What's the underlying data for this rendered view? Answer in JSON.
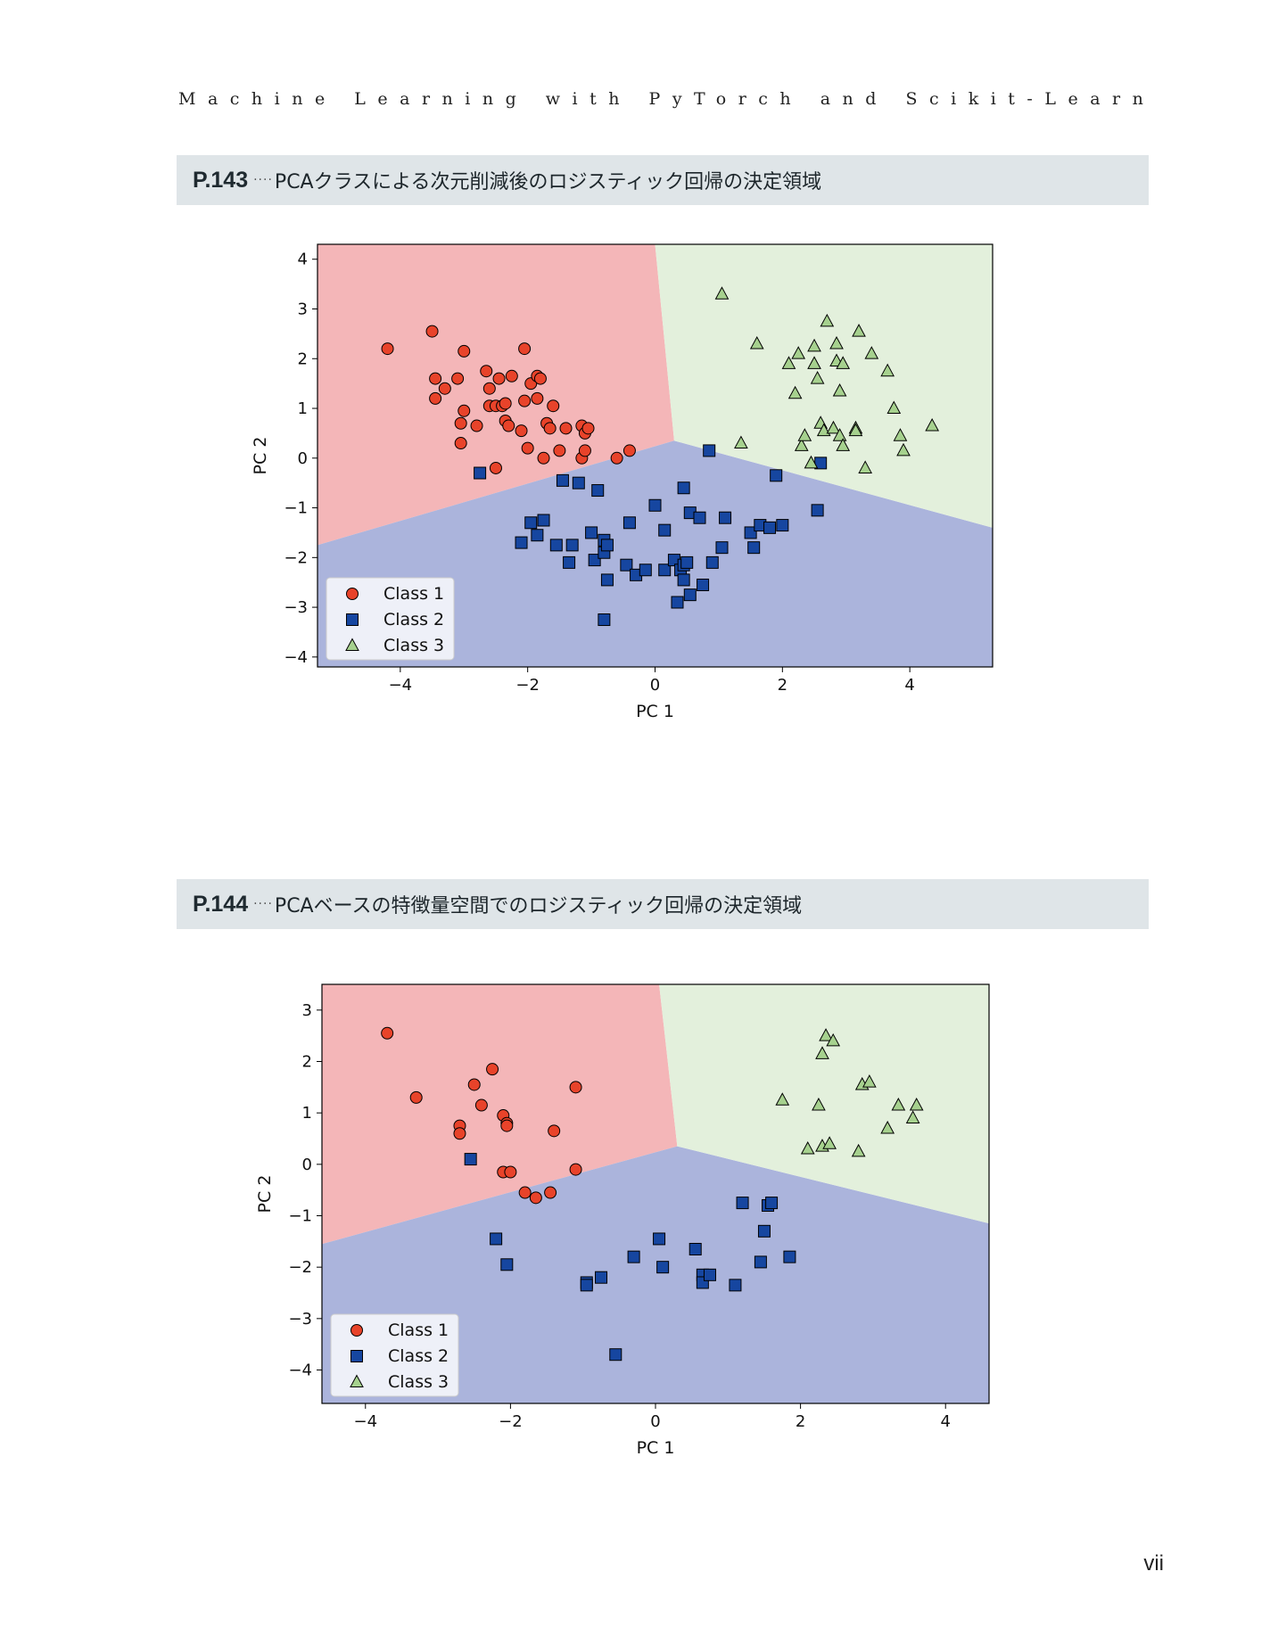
{
  "running_header": "Machine Learning with PyTorch and Scikit-Learn",
  "sections": [
    {
      "page_ref": "P.143",
      "dots": "····",
      "caption": "PCAクラスによる次元削減後のロジスティック回帰の決定領域"
    },
    {
      "page_ref": "P.144",
      "dots": "····",
      "caption": "PCAベースの特徴量空間でのロジスティック回帰の決定領域"
    }
  ],
  "page_number": "vii",
  "colors": {
    "class1_region": "#f4b6b8",
    "class2_region": "#abb4dc",
    "class3_region": "#e3f0dc",
    "class1_marker": "#e8432a",
    "class2_marker": "#1646a0",
    "class3_marker": "#a6d18e",
    "section_bar": "#dfe5e8"
  },
  "chart_data": [
    {
      "type": "scatter",
      "title": "",
      "xlabel": "PC 1",
      "ylabel": "PC 2",
      "xlim": [
        -5.3,
        5.3
      ],
      "ylim": [
        -4.2,
        4.3
      ],
      "xticks": [
        -4,
        -2,
        0,
        2,
        4
      ],
      "yticks": [
        -4,
        -3,
        -2,
        -1,
        0,
        1,
        2,
        3,
        4
      ],
      "xtick_labels": [
        "−4",
        "−2",
        "0",
        "2",
        "4"
      ],
      "ytick_labels": [
        "−4",
        "−3",
        "−2",
        "−1",
        "0",
        "1",
        "2",
        "3",
        "4"
      ],
      "legend_position": "lower-left",
      "decision_regions": {
        "junction": [
          0.3,
          0.35
        ],
        "boundaries_to": {
          "top": [
            0.0,
            4.3
          ],
          "left": [
            -5.3,
            -1.75
          ],
          "right": [
            5.3,
            -1.4
          ]
        }
      },
      "series": [
        {
          "name": "Class 1",
          "marker": "circle",
          "points": [
            [
              -4.2,
              2.2
            ],
            [
              -3.5,
              2.55
            ],
            [
              -3.45,
              1.6
            ],
            [
              -3.45,
              1.2
            ],
            [
              -3.3,
              1.4
            ],
            [
              -3.1,
              1.6
            ],
            [
              -3.05,
              0.7
            ],
            [
              -3.05,
              0.3
            ],
            [
              -3.0,
              0.95
            ],
            [
              -3.0,
              2.15
            ],
            [
              -2.8,
              0.65
            ],
            [
              -2.65,
              1.75
            ],
            [
              -2.6,
              1.4
            ],
            [
              -2.6,
              1.05
            ],
            [
              -2.5,
              1.05
            ],
            [
              -2.45,
              1.6
            ],
            [
              -2.4,
              1.05
            ],
            [
              -2.35,
              1.1
            ],
            [
              -2.35,
              0.75
            ],
            [
              -2.3,
              0.65
            ],
            [
              -2.25,
              1.65
            ],
            [
              -2.1,
              0.55
            ],
            [
              -2.05,
              2.2
            ],
            [
              -2.05,
              1.15
            ],
            [
              -2.0,
              0.2
            ],
            [
              -1.95,
              1.5
            ],
            [
              -1.85,
              1.2
            ],
            [
              -1.85,
              1.65
            ],
            [
              -1.8,
              1.6
            ],
            [
              -1.75,
              0.0
            ],
            [
              -1.7,
              0.7
            ],
            [
              -1.65,
              0.6
            ],
            [
              -1.6,
              1.05
            ],
            [
              -1.5,
              0.15
            ],
            [
              -1.4,
              0.6
            ],
            [
              -1.15,
              0.65
            ],
            [
              -1.15,
              0.0
            ],
            [
              -1.1,
              0.15
            ],
            [
              -1.1,
              0.5
            ],
            [
              -1.05,
              0.6
            ],
            [
              -0.6,
              0.0
            ],
            [
              -0.4,
              0.15
            ],
            [
              -2.5,
              -0.2
            ]
          ]
        },
        {
          "name": "Class 2",
          "marker": "square",
          "points": [
            [
              -2.75,
              -0.3
            ],
            [
              -2.1,
              -1.7
            ],
            [
              -1.95,
              -1.3
            ],
            [
              -1.85,
              -1.55
            ],
            [
              -1.75,
              -1.25
            ],
            [
              -1.55,
              -1.75
            ],
            [
              -1.45,
              -0.45
            ],
            [
              -1.35,
              -2.1
            ],
            [
              -1.3,
              -1.75
            ],
            [
              -1.2,
              -0.5
            ],
            [
              -1.0,
              -1.5
            ],
            [
              -0.95,
              -2.05
            ],
            [
              -0.9,
              -0.65
            ],
            [
              -0.8,
              -1.65
            ],
            [
              -0.8,
              -1.9
            ],
            [
              -0.75,
              -1.75
            ],
            [
              -0.75,
              -2.45
            ],
            [
              -0.8,
              -3.25
            ],
            [
              -0.45,
              -2.15
            ],
            [
              -0.4,
              -1.3
            ],
            [
              -0.3,
              -2.35
            ],
            [
              -0.15,
              -2.25
            ],
            [
              0.0,
              -0.95
            ],
            [
              0.15,
              -1.45
            ],
            [
              0.15,
              -2.25
            ],
            [
              0.3,
              -2.05
            ],
            [
              0.35,
              -2.9
            ],
            [
              0.4,
              -2.25
            ],
            [
              0.45,
              -0.6
            ],
            [
              0.45,
              -2.15
            ],
            [
              0.45,
              -2.45
            ],
            [
              0.5,
              -2.1
            ],
            [
              0.55,
              -1.1
            ],
            [
              0.55,
              -2.75
            ],
            [
              0.7,
              -1.2
            ],
            [
              0.75,
              -2.55
            ],
            [
              0.85,
              0.15
            ],
            [
              0.9,
              -2.1
            ],
            [
              1.05,
              -1.8
            ],
            [
              1.1,
              -1.2
            ],
            [
              1.5,
              -1.5
            ],
            [
              1.55,
              -1.8
            ],
            [
              1.65,
              -1.35
            ],
            [
              1.8,
              -1.4
            ],
            [
              1.9,
              -0.35
            ],
            [
              2.0,
              -1.35
            ],
            [
              2.55,
              -1.05
            ],
            [
              2.6,
              -0.1
            ]
          ]
        },
        {
          "name": "Class 3",
          "marker": "triangle",
          "points": [
            [
              1.05,
              3.3
            ],
            [
              1.6,
              2.3
            ],
            [
              1.35,
              0.3
            ],
            [
              2.1,
              1.9
            ],
            [
              2.2,
              1.3
            ],
            [
              2.25,
              2.1
            ],
            [
              2.3,
              0.25
            ],
            [
              2.35,
              0.45
            ],
            [
              2.45,
              -0.1
            ],
            [
              2.5,
              2.25
            ],
            [
              2.5,
              1.9
            ],
            [
              2.55,
              1.6
            ],
            [
              2.6,
              0.7
            ],
            [
              2.65,
              0.55
            ],
            [
              2.7,
              2.75
            ],
            [
              2.8,
              0.6
            ],
            [
              2.85,
              2.3
            ],
            [
              2.85,
              1.95
            ],
            [
              2.9,
              1.35
            ],
            [
              2.9,
              0.45
            ],
            [
              2.95,
              0.25
            ],
            [
              2.95,
              1.9
            ],
            [
              3.15,
              0.6
            ],
            [
              3.15,
              0.55
            ],
            [
              3.2,
              2.55
            ],
            [
              3.3,
              -0.2
            ],
            [
              3.4,
              2.1
            ],
            [
              3.65,
              1.75
            ],
            [
              3.75,
              1.0
            ],
            [
              3.85,
              0.45
            ],
            [
              3.9,
              0.15
            ],
            [
              4.35,
              0.65
            ]
          ]
        }
      ]
    },
    {
      "type": "scatter",
      "title": "",
      "xlabel": "PC 1",
      "ylabel": "PC 2",
      "xlim": [
        -4.6,
        4.6
      ],
      "ylim": [
        -4.65,
        3.5
      ],
      "xticks": [
        -4,
        -2,
        0,
        2,
        4
      ],
      "yticks": [
        -4,
        -3,
        -2,
        -1,
        0,
        1,
        2,
        3
      ],
      "xtick_labels": [
        "−4",
        "−2",
        "0",
        "2",
        "4"
      ],
      "ytick_labels": [
        "−4",
        "−3",
        "−2",
        "−1",
        "0",
        "1",
        "2",
        "3"
      ],
      "legend_position": "lower-left",
      "decision_regions": {
        "junction": [
          0.3,
          0.35
        ],
        "boundaries_to": {
          "top": [
            0.05,
            3.5
          ],
          "left": [
            -4.6,
            -1.55
          ],
          "right": [
            4.6,
            -1.15
          ]
        }
      },
      "series": [
        {
          "name": "Class 1",
          "marker": "circle",
          "points": [
            [
              -3.7,
              2.55
            ],
            [
              -3.3,
              1.3
            ],
            [
              -2.7,
              0.75
            ],
            [
              -2.7,
              0.6
            ],
            [
              -2.5,
              1.55
            ],
            [
              -2.4,
              1.15
            ],
            [
              -2.25,
              1.85
            ],
            [
              -2.1,
              0.95
            ],
            [
              -2.05,
              0.8
            ],
            [
              -2.05,
              0.75
            ],
            [
              -2.1,
              -0.15
            ],
            [
              -2.0,
              -0.15
            ],
            [
              -1.8,
              -0.55
            ],
            [
              -1.65,
              -0.65
            ],
            [
              -1.45,
              -0.55
            ],
            [
              -1.4,
              0.65
            ],
            [
              -1.1,
              1.5
            ],
            [
              -1.1,
              -0.1
            ]
          ]
        },
        {
          "name": "Class 2",
          "marker": "square",
          "points": [
            [
              -2.55,
              0.1
            ],
            [
              -2.2,
              -1.45
            ],
            [
              -2.05,
              -1.95
            ],
            [
              -0.95,
              -2.3
            ],
            [
              -0.95,
              -2.35
            ],
            [
              -0.75,
              -2.2
            ],
            [
              -0.55,
              -3.7
            ],
            [
              -0.3,
              -1.8
            ],
            [
              0.05,
              -1.45
            ],
            [
              0.1,
              -2.0
            ],
            [
              0.55,
              -1.65
            ],
            [
              0.65,
              -2.15
            ],
            [
              0.65,
              -2.3
            ],
            [
              0.75,
              -2.15
            ],
            [
              1.1,
              -2.35
            ],
            [
              1.2,
              -0.75
            ],
            [
              1.45,
              -1.9
            ],
            [
              1.5,
              -1.3
            ],
            [
              1.55,
              -0.8
            ],
            [
              1.6,
              -0.75
            ],
            [
              1.85,
              -1.8
            ]
          ]
        },
        {
          "name": "Class 3",
          "marker": "triangle",
          "points": [
            [
              1.75,
              1.25
            ],
            [
              2.1,
              0.3
            ],
            [
              2.25,
              1.15
            ],
            [
              2.3,
              2.15
            ],
            [
              2.3,
              0.35
            ],
            [
              2.35,
              2.5
            ],
            [
              2.4,
              0.4
            ],
            [
              2.45,
              2.4
            ],
            [
              2.8,
              0.25
            ],
            [
              2.85,
              1.55
            ],
            [
              2.95,
              1.6
            ],
            [
              3.2,
              0.7
            ],
            [
              3.35,
              1.15
            ],
            [
              3.55,
              0.9
            ],
            [
              3.6,
              1.15
            ]
          ]
        }
      ]
    }
  ]
}
